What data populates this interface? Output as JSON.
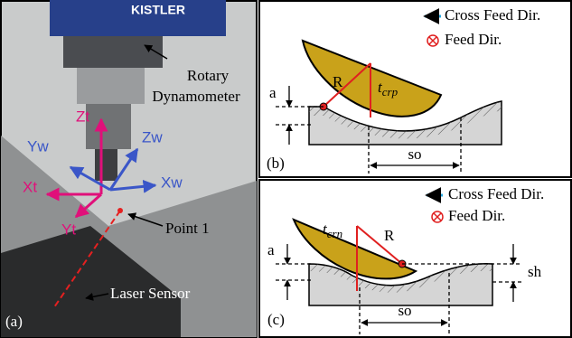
{
  "panel_a": {
    "label": "(a)",
    "brand": "KISTLER",
    "dynamometer": [
      "Rotary",
      "Dynamometer"
    ],
    "axes": {
      "zt": "Zt",
      "zw": "Zw",
      "yw": "Yw",
      "xt": "Xt",
      "xw": "Xw",
      "yt": "Yt"
    },
    "point": "Point 1",
    "sensor": "Laser Sensor"
  },
  "panel_b": {
    "label": "(b)",
    "legend": [
      "Cross Feed Dir.",
      "Feed Dir."
    ],
    "radius": "R",
    "thickness": {
      "symbol": "t",
      "subscript": "crp"
    },
    "depth": "a",
    "spacing": "so"
  },
  "panel_c": {
    "label": "(c)",
    "legend": [
      "Cross Feed Dir.",
      "Feed Dir."
    ],
    "radius": "R",
    "thickness": {
      "symbol": "t",
      "subscript": "crn"
    },
    "depth": "a",
    "height": "sh",
    "spacing": "so"
  }
}
